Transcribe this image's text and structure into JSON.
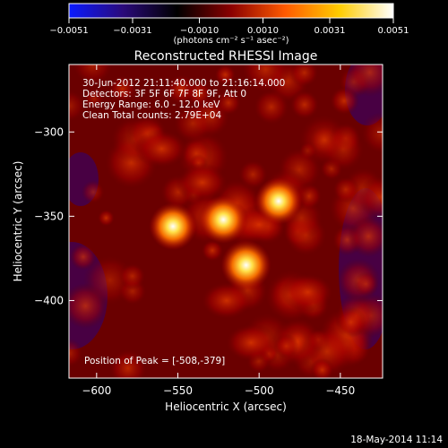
{
  "chart_data": {
    "type": "heatmap",
    "title": "Reconstructed RHESSI Image",
    "xlabel": "Heliocentric X (arcsec)",
    "ylabel": "Heliocentric Y (arcsec)",
    "xlim": [
      -617,
      -424
    ],
    "ylim": [
      -446,
      -260
    ],
    "x_ticks": [
      -600,
      -550,
      -500,
      -450
    ],
    "x_tick_labels": [
      "−600",
      "−550",
      "−500",
      "−450"
    ],
    "y_ticks": [
      -300,
      -350,
      -400
    ],
    "y_tick_labels": [
      "−300",
      "−350",
      "−400"
    ],
    "colorbar": {
      "min": -0.0051,
      "max": 0.0051,
      "tick_values": [
        -0.0051,
        -0.0031,
        -0.001,
        0.001,
        0.0031,
        0.0051
      ],
      "tick_labels": [
        "−0.0051",
        "−0.0031",
        "−0.0010",
        "0.0010",
        "0.0031",
        "0.0051"
      ],
      "units_label": "(photons cm⁻² s⁻¹ asec⁻²)",
      "colormap": [
        "#0a1aff",
        "#2a0a7a",
        "#000000",
        "#8a0000",
        "#ff5a00",
        "#ffcc00",
        "#ffffff"
      ]
    },
    "sources": [
      {
        "x": -553,
        "y": -356,
        "peak": 0.0043
      },
      {
        "x": -522,
        "y": -352,
        "peak": 0.0045
      },
      {
        "x": -508,
        "y": -379,
        "peak": 0.0051
      },
      {
        "x": -488,
        "y": -341,
        "peak": 0.0042
      }
    ],
    "annotations": {
      "time_range": "30-Jun-2012 21:11:40.000 to 21:16:14.000",
      "detectors": "Detectors: 3F 5F 6F 7F 8F 9F, Att 0",
      "energy": "Energy Range: 6.0 - 12.0 keV",
      "clean": "Clean    Total counts: 2.79E+04",
      "peak_position": "Position of Peak = [-508,-379]"
    },
    "footer_date": "18-May-2014 11:14"
  }
}
